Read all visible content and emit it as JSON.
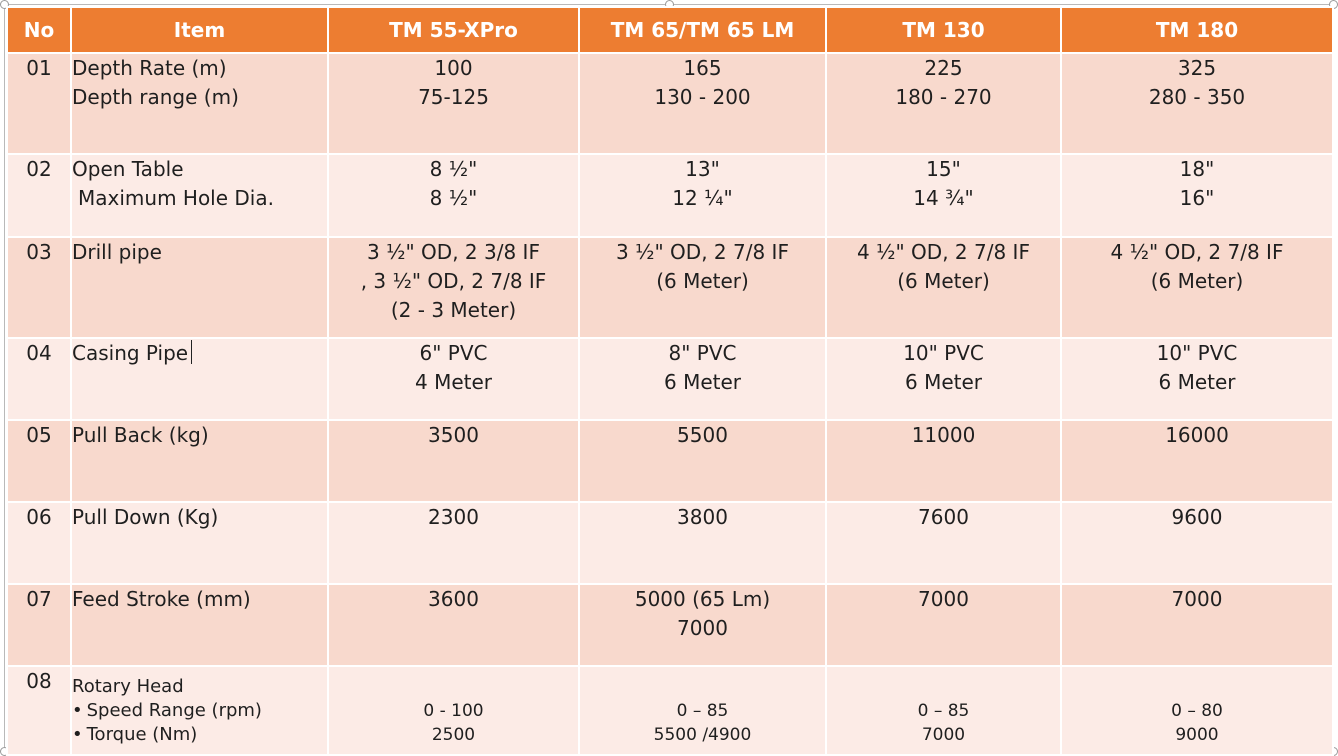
{
  "headers": [
    "No",
    "Item",
    "TM 55-XPro",
    "TM 65/TM 65 LM",
    "TM 130",
    "TM 180"
  ],
  "rows": [
    {
      "no": "01",
      "item": [
        "Depth Rate (m)",
        "Depth range (m)"
      ],
      "values": [
        [
          "100",
          "75-125"
        ],
        [
          "165",
          "130 - 200"
        ],
        [
          "225",
          "180 - 270"
        ],
        [
          "325",
          "280 - 350"
        ]
      ]
    },
    {
      "no": "02",
      "item": [
        "Open Table",
        "Maximum Hole Dia."
      ],
      "values": [
        [
          "8 ½\"",
          "8 ½\""
        ],
        [
          "13\"",
          "12 ¼\""
        ],
        [
          "15\"",
          "14 ¾\""
        ],
        [
          "18\"",
          "16\""
        ]
      ]
    },
    {
      "no": "03",
      "item": [
        "Drill pipe"
      ],
      "values": [
        [
          "3 ½\" OD, 2 3/8 IF",
          ", 3 ½\" OD, 2 7/8 IF",
          "(2 - 3 Meter)"
        ],
        [
          "3 ½\" OD, 2 7/8 IF",
          "(6 Meter)"
        ],
        [
          "4 ½\" OD, 2 7/8 IF",
          "(6 Meter)"
        ],
        [
          "4 ½\" OD, 2 7/8 IF",
          "(6 Meter)"
        ]
      ]
    },
    {
      "no": "04",
      "item": [
        "Casing Pipe"
      ],
      "values": [
        [
          "6\" PVC",
          "4 Meter"
        ],
        [
          "8\" PVC",
          "6 Meter"
        ],
        [
          "10\" PVC",
          "6 Meter"
        ],
        [
          "10\" PVC",
          "6 Meter"
        ]
      ]
    },
    {
      "no": "05",
      "item": [
        "Pull Back (kg)"
      ],
      "values": [
        [
          "3500"
        ],
        [
          "5500"
        ],
        [
          "11000"
        ],
        [
          "16000"
        ]
      ]
    },
    {
      "no": "06",
      "item": [
        "Pull Down (Kg)"
      ],
      "values": [
        [
          "2300"
        ],
        [
          "3800"
        ],
        [
          "7600"
        ],
        [
          "9600"
        ]
      ]
    },
    {
      "no": "07",
      "item": [
        "Feed Stroke (mm)"
      ],
      "values": [
        [
          "3600"
        ],
        [
          "5000 (65 Lm)",
          "7000"
        ],
        [
          "7000"
        ],
        [
          "7000"
        ]
      ]
    },
    {
      "no": "08",
      "item": [
        "Rotary Head",
        "Speed Range (rpm)",
        "Torque (Nm)"
      ],
      "values": [
        [
          "0 - 100",
          "2500"
        ],
        [
          "0 – 85",
          "5500 /4900"
        ],
        [
          "0 – 85",
          "7000"
        ],
        [
          "0 – 80",
          "9000"
        ]
      ]
    }
  ],
  "colors": {
    "header": "#ed7d31",
    "row_dark": "#f8d9cd",
    "row_light": "#fcebe6",
    "header_text": "#ffffff"
  }
}
